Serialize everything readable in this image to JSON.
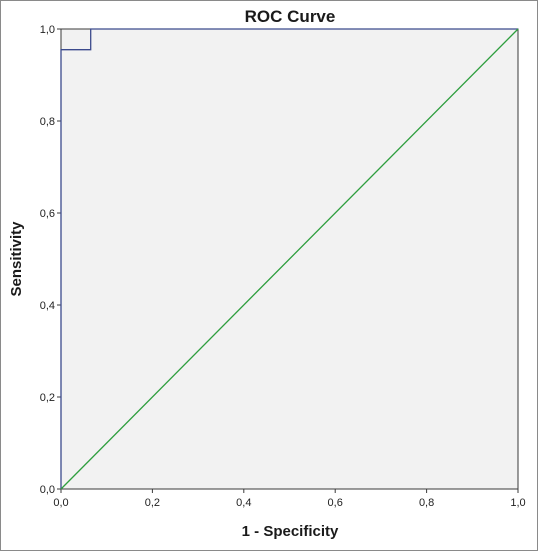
{
  "chart_data": {
    "type": "line",
    "title": "ROC Curve",
    "xlabel": "1 - Specificity",
    "ylabel": "Sensitivity",
    "xlim": [
      0,
      1
    ],
    "ylim": [
      0,
      1
    ],
    "x_ticks": [
      "0,0",
      "0,2",
      "0,4",
      "0,6",
      "0,8",
      "1,0"
    ],
    "y_ticks": [
      "0,0",
      "0,2",
      "0,4",
      "0,6",
      "0,8",
      "1,0"
    ],
    "grid": false,
    "series": [
      {
        "values": [
          {
            "x": 0,
            "y": 0
          },
          {
            "x": 0,
            "y": 0.955
          },
          {
            "x": 0.065,
            "y": 0.955
          },
          {
            "x": 0.065,
            "y": 1
          },
          {
            "x": 1,
            "y": 1
          }
        ],
        "color": "#3b4a8c"
      },
      {
        "values": [
          {
            "x": 0,
            "y": 0
          },
          {
            "x": 1,
            "y": 1
          }
        ],
        "color": "#2e9e3e"
      }
    ],
    "plot_background": "#f2f2f2"
  }
}
